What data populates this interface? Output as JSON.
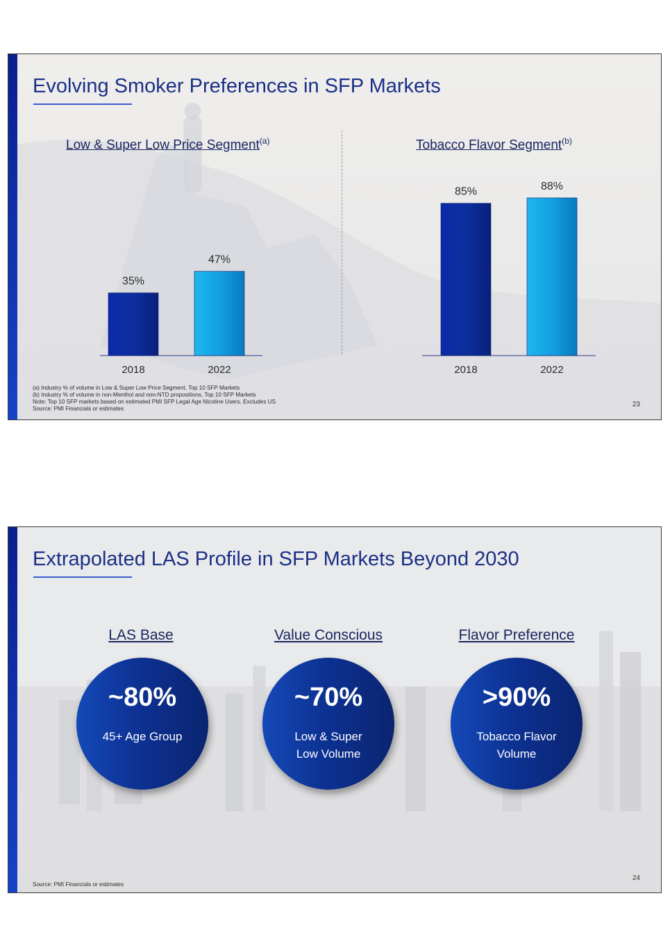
{
  "slide1": {
    "title": "Evolving Smoker Preferences in SFP Markets",
    "page_number": "23",
    "notes": [
      "(a) Industry % of volume in Low & Super Low Price Segment, Top 10 SFP Markets",
      "(b) Industry % of volume in non-Menthol and non-NTD propositions, Top 10 SFP Markets",
      "Note: Top 10 SFP markets based on estimated PMI SFP Legal Age Nicotine Users. Excludes US",
      "Source: PMI Financials or estimates"
    ]
  },
  "chart_data": [
    {
      "type": "bar",
      "title": "Low & Super Low Price Segment",
      "title_note": "(a)",
      "categories": [
        "2018",
        "2022"
      ],
      "values": [
        35,
        47
      ],
      "labels": [
        "35%",
        "47%"
      ],
      "ylim": [
        0,
        100
      ],
      "colors": [
        "#0f2a9e",
        "#14a0e0"
      ]
    },
    {
      "type": "bar",
      "title": "Tobacco Flavor Segment",
      "title_note": "(b)",
      "categories": [
        "2018",
        "2022"
      ],
      "values": [
        85,
        88
      ],
      "labels": [
        "85%",
        "88%"
      ],
      "ylim": [
        0,
        100
      ],
      "colors": [
        "#0f2a9e",
        "#14a0e0"
      ]
    }
  ],
  "slide2": {
    "title": "Extrapolated LAS Profile in SFP Markets Beyond 2030",
    "page_number": "24",
    "source": "Source: PMI Financials or estimates",
    "columns": [
      {
        "heading": "LAS Base",
        "value": "~80%",
        "line1": "45+ Age Group",
        "line2": ""
      },
      {
        "heading": "Value Conscious",
        "value": "~70%",
        "line1": "Low & Super",
        "line2": "Low Volume"
      },
      {
        "heading": "Flavor Preference",
        "value": ">90%",
        "line1": "Tobacco Flavor",
        "line2": "Volume"
      }
    ]
  }
}
